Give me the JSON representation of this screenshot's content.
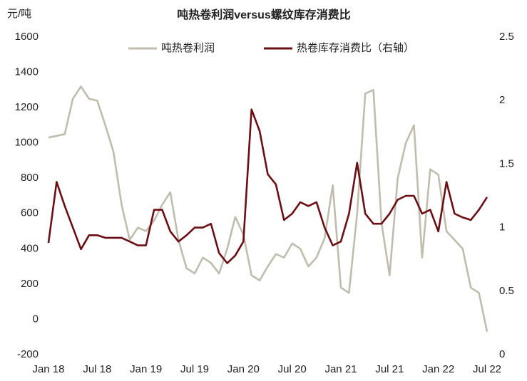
{
  "chart_data": {
    "type": "line",
    "title": "吨热卷利润versus螺纹库存消费比",
    "y_label": "元/吨",
    "categories": [
      "Jan 18",
      null,
      null,
      null,
      null,
      null,
      "Jul 18",
      null,
      null,
      null,
      null,
      null,
      "Jan 19",
      null,
      null,
      null,
      null,
      null,
      "Jul 19",
      null,
      null,
      null,
      null,
      null,
      "Jan 20",
      null,
      null,
      null,
      null,
      null,
      "Jul 20",
      null,
      null,
      null,
      null,
      null,
      "Jan 21",
      null,
      null,
      null,
      null,
      null,
      "Jul 21",
      null,
      null,
      null,
      null,
      null,
      "Jan 22",
      null,
      null,
      null,
      null,
      null,
      "Jul 22"
    ],
    "series": [
      {
        "name": "吨热卷利润",
        "color": "#bfbdae",
        "axis": "y",
        "values": [
          1030,
          1040,
          1050,
          1250,
          1320,
          1250,
          1240,
          1100,
          950,
          650,
          450,
          520,
          500,
          560,
          650,
          720,
          450,
          290,
          260,
          350,
          320,
          260,
          400,
          580,
          480,
          250,
          220,
          300,
          370,
          350,
          430,
          400,
          300,
          350,
          460,
          760,
          180,
          150,
          600,
          1280,
          1300,
          550,
          250,
          800,
          1000,
          1100,
          350,
          850,
          820,
          500,
          450,
          400,
          180,
          150,
          -70
        ]
      },
      {
        "name": "热卷库存消费比（右轴）",
        "color": "#6b0f14",
        "axis": "y2",
        "values": [
          0.88,
          1.36,
          1.17,
          1.0,
          0.83,
          0.94,
          0.94,
          0.92,
          0.92,
          0.92,
          0.89,
          0.86,
          0.86,
          1.14,
          1.14,
          0.97,
          0.89,
          0.94,
          1.0,
          1.0,
          1.03,
          0.8,
          0.72,
          0.78,
          0.89,
          1.93,
          1.76,
          1.42,
          1.34,
          1.06,
          1.11,
          1.2,
          1.17,
          1.2,
          1.0,
          0.86,
          0.89,
          1.11,
          1.51,
          1.11,
          1.03,
          1.03,
          1.11,
          1.22,
          1.25,
          1.25,
          1.11,
          1.14,
          0.97,
          1.36,
          1.11,
          1.08,
          1.06,
          1.14,
          1.24
        ]
      }
    ],
    "ylim": [
      -200,
      1600
    ],
    "yticks": [
      -200,
      0,
      200,
      400,
      600,
      800,
      1000,
      1200,
      1400,
      1600
    ],
    "y2lim": [
      0,
      2.5
    ],
    "y2ticks": [
      0,
      0.5,
      1,
      1.5,
      2,
      2.5
    ],
    "grid": false,
    "legend": "top"
  }
}
